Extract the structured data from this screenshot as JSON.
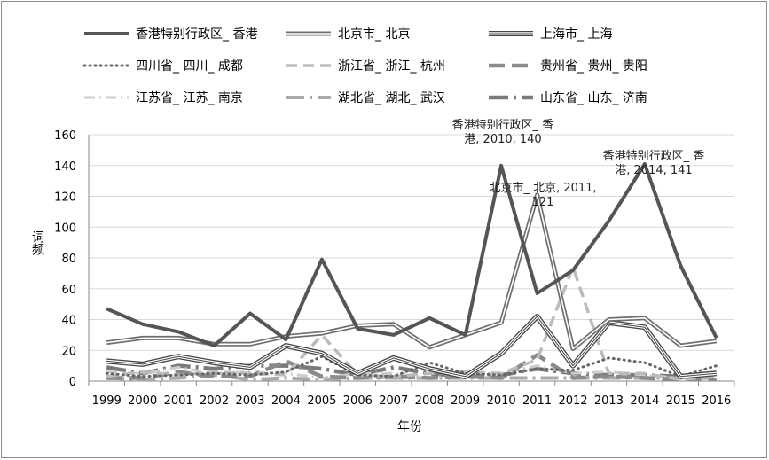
{
  "chart_data": {
    "type": "line",
    "title": "",
    "xlabel": "年份",
    "ylabel": "词频",
    "ylim": [
      0,
      160
    ],
    "yticks": [
      0,
      20,
      40,
      60,
      80,
      100,
      120,
      140,
      160
    ],
    "categories": [
      "1999",
      "2000",
      "2001",
      "2002",
      "2003",
      "2004",
      "2005",
      "2006",
      "2007",
      "2008",
      "2009",
      "2010",
      "2011",
      "2012",
      "2013",
      "2014",
      "2015",
      "2016"
    ],
    "legend_position": "top",
    "series": [
      {
        "name": "香港特别行政区_ 香港",
        "style": "solid-thick",
        "color": "#555555",
        "values": [
          47,
          37,
          32,
          23,
          44,
          27,
          79,
          34,
          30,
          41,
          30,
          140,
          57,
          72,
          104,
          141,
          75,
          28
        ]
      },
      {
        "name": "北京市_ 北京",
        "style": "double",
        "color": "#6e6e6e",
        "values": [
          25,
          28,
          28,
          24,
          24,
          29,
          31,
          36,
          37,
          22,
          30,
          38,
          121,
          21,
          40,
          41,
          23,
          26
        ]
      },
      {
        "name": "上海市_ 上海",
        "style": "triple",
        "color": "#444444",
        "values": [
          13,
          11,
          16,
          12,
          9,
          23,
          18,
          5,
          15,
          8,
          3,
          18,
          42,
          10,
          38,
          35,
          3,
          5
        ]
      },
      {
        "name": "四川省_ 四川_ 成都",
        "style": "dotted",
        "color": "#666666",
        "values": [
          5,
          3,
          4,
          5,
          4,
          6,
          16,
          4,
          3,
          12,
          5,
          4,
          8,
          7,
          15,
          12,
          3,
          10
        ]
      },
      {
        "name": "浙江省_ 浙江_ 杭州",
        "style": "dashed",
        "color": "#bbbbbb",
        "values": [
          3,
          6,
          4,
          6,
          5,
          4,
          30,
          4,
          3,
          5,
          6,
          5,
          14,
          74,
          5,
          5,
          1,
          3
        ]
      },
      {
        "name": "贵州省_ 贵州_ 贵阳",
        "style": "long-dash",
        "color": "#8a8a8a",
        "values": [
          2,
          2,
          6,
          3,
          3,
          13,
          3,
          2,
          3,
          2,
          3,
          2,
          17,
          2,
          3,
          2,
          1,
          1
        ]
      },
      {
        "name": "江苏省_ 江苏_ 南京",
        "style": "dash-dot",
        "color": "#cccccc",
        "values": [
          6,
          5,
          9,
          5,
          6,
          5,
          2,
          5,
          5,
          2,
          5,
          5,
          10,
          5,
          6,
          4,
          2,
          4
        ]
      },
      {
        "name": "湖北省_ 湖北_ 武汉",
        "style": "long-dash-dot",
        "color": "#aaaaaa",
        "values": [
          2,
          1,
          2,
          4,
          1,
          2,
          1,
          2,
          2,
          2,
          2,
          2,
          2,
          2,
          2,
          2,
          2,
          2
        ]
      },
      {
        "name": "山东省_ 山东_ 济南",
        "style": "dash-dot-thick",
        "color": "#7a7a7a",
        "values": [
          9,
          5,
          10,
          8,
          10,
          10,
          8,
          4,
          9,
          5,
          3,
          4,
          8,
          5,
          4,
          4,
          3,
          2
        ]
      }
    ],
    "annotations": [
      {
        "lines": [
          "香港特别行政区_ 香",
          "港, 2010, 140"
        ],
        "series": "香港特别行政区_ 香港",
        "x": "2010",
        "y": 140
      },
      {
        "lines": [
          "北京市_ 北京, 2011,",
          "121"
        ],
        "series": "北京市_ 北京",
        "x": "2011",
        "y": 121
      },
      {
        "lines": [
          "香港特别行政区_ 香",
          "港, 2014, 141"
        ],
        "series": "香港特别行政区_ 香港",
        "x": "2014",
        "y": 141
      }
    ]
  }
}
